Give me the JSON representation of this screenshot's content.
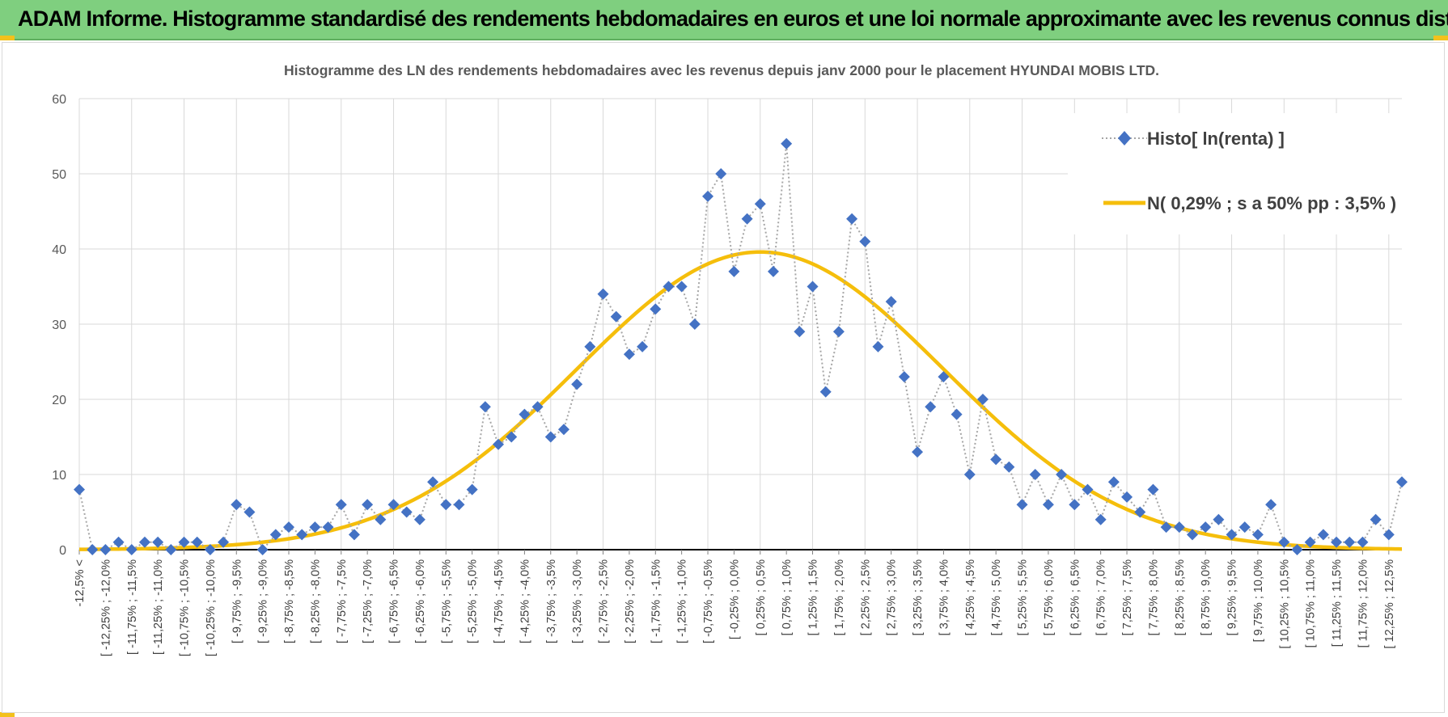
{
  "header": {
    "title": "ADAM Informe. Histogramme standardisé des rendements hebdomadaires en euros et une loi normale approximante avec les revenus connus distribués"
  },
  "colors": {
    "banner": "#7fcf7f",
    "accent": "#f3c11c",
    "histo": "#4472c4",
    "normal": "#f5be0b"
  },
  "chart_data": {
    "type": "line",
    "title": "Histogramme des LN des rendements hebdomadaires avec les revenus depuis janv 2000 pour le placement HYUNDAI MOBIS LTD.",
    "ylim": [
      0,
      60
    ],
    "yticks": [
      0,
      10,
      20,
      30,
      40,
      50,
      60
    ],
    "grid": true,
    "legend_position": "top-right",
    "x_labels": [
      "-12,5% <",
      "[ -12,25% ; -12,0%",
      "[ -11,75% ; -11,5%",
      "[ -11,25% ; -11,0%",
      "[ -10,75% ; -10,5%",
      "[ -10,25% ; -10,0%",
      "[ -9,75% ; -9,5%",
      "[ -9,25% ; -9,0%",
      "[ -8,75% ; -8,5%",
      "[ -8,25% ; -8,0%",
      "[ -7,75% ; -7,5%",
      "[ -7,25% ; -7,0%",
      "[ -6,75% ; -6,5%",
      "[ -6,25% ; -6,0%",
      "[ -5,75% ; -5,5%",
      "[ -5,25% ; -5,0%",
      "[ -4,75% ; -4,5%",
      "[ -4,25% ; -4,0%",
      "[ -3,75% ; -3,5%",
      "[ -3,25% ; -3,0%",
      "[ -2,75% ; -2,5%",
      "[ -2,25% ; -2,0%",
      "[ -1,75% ; -1,5%",
      "[ -1,25% ; -1,0%",
      "[ -0,75% ; -0,5%",
      "[ -0,25% ; 0,0%",
      "[ 0,25% ; 0,5%",
      "[ 0,75% ; 1,0%",
      "[ 1,25% ; 1,5%",
      "[ 1,75% ; 2,0%",
      "[ 2,25% ; 2,5%",
      "[ 2,75% ; 3,0%",
      "[ 3,25% ; 3,5%",
      "[ 3,75% ; 4,0%",
      "[ 4,25% ; 4,5%",
      "[ 4,75% ; 5,0%",
      "[ 5,25% ; 5,5%",
      "[ 5,75% ; 6,0%",
      "[ 6,25% ; 6,5%",
      "[ 6,75% ; 7,0%",
      "[ 7,25% ; 7,5%",
      "[ 7,75% ; 8,0%",
      "[ 8,25% ; 8,5%",
      "[ 8,75% ; 9,0%",
      "[ 9,25% ; 9,5%",
      "[ 9,75% ; 10,0%",
      "[ 10,25% ; 10,5%",
      "[ 10,75% ; 11,0%",
      "[ 11,25% ; 11,5%",
      "[ 11,75% ; 12,0%",
      "[ 12,25% ; 12,5%"
    ],
    "series": [
      {
        "name": "Histo[ ln(renta) ]",
        "style": "dotted-line-diamond-markers",
        "color": "#4472c4",
        "values": [
          8,
          0,
          0,
          1,
          0,
          1,
          1,
          0,
          1,
          1,
          0,
          1,
          6,
          5,
          0,
          2,
          3,
          2,
          3,
          3,
          6,
          2,
          6,
          4,
          6,
          5,
          4,
          9,
          6,
          6,
          8,
          19,
          14,
          15,
          18,
          19,
          15,
          16,
          22,
          27,
          34,
          31,
          26,
          27,
          32,
          35,
          35,
          30,
          47,
          50,
          37,
          44,
          46,
          37,
          54,
          29,
          35,
          21,
          29,
          44,
          41,
          27,
          33,
          23,
          13,
          19,
          23,
          18,
          10,
          20,
          12,
          11,
          6,
          10,
          6,
          10,
          6,
          8,
          4,
          9,
          7,
          5,
          8,
          3,
          3,
          2,
          3,
          4,
          2,
          3,
          2,
          6,
          1,
          0,
          1,
          2,
          1,
          1,
          1,
          4,
          2,
          9
        ]
      },
      {
        "name": "N( 0,29% ; s a 50% pp : 3,5% )",
        "style": "smooth-line",
        "color": "#f5be0b",
        "mean_index": 52,
        "sigma_bins": 14,
        "peak": 39.6
      }
    ]
  }
}
